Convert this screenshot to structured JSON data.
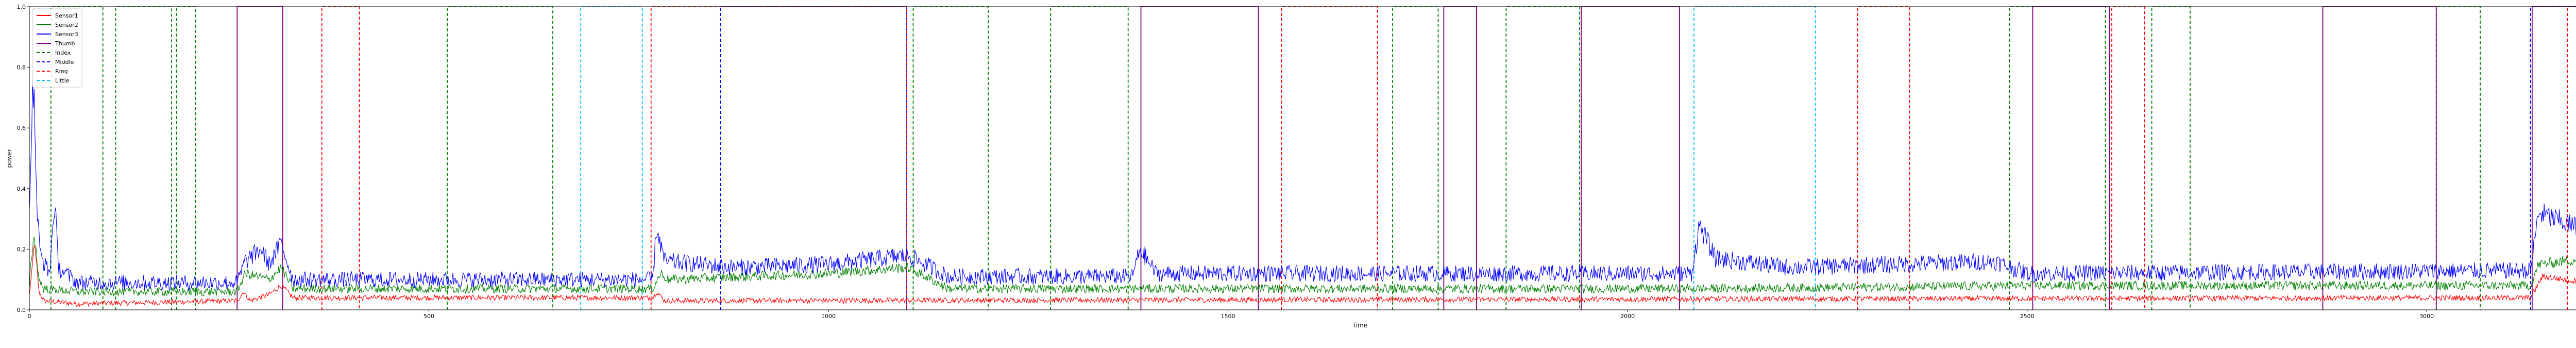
{
  "chart_data": {
    "type": "line",
    "xlabel": "Time",
    "ylabel": "power",
    "xlim": [
      0,
      3330
    ],
    "ylim": [
      0,
      1.0
    ],
    "x_ticks": [
      0,
      500,
      1000,
      1500,
      2000,
      2500,
      3000
    ],
    "y_ticks": [
      0.0,
      0.2,
      0.4,
      0.6,
      0.8,
      1.0
    ],
    "legend_location": "upper-left",
    "legend": [
      {
        "name": "Sensor1",
        "color": "#ff0000",
        "style": "solid"
      },
      {
        "name": "Sensor2",
        "color": "#008000",
        "style": "solid"
      },
      {
        "name": "Sensor3",
        "color": "#0000ff",
        "style": "solid"
      },
      {
        "name": "Thumb",
        "color": "#800080",
        "style": "solid"
      },
      {
        "name": "Index",
        "color": "#008000",
        "style": "dashed"
      },
      {
        "name": "Middle",
        "color": "#0000ff",
        "style": "dashed"
      },
      {
        "name": "Ring",
        "color": "#ff0000",
        "style": "dashed"
      },
      {
        "name": "Little",
        "color": "#00bfff",
        "style": "dashed"
      }
    ],
    "sensor_series": [
      {
        "name": "Sensor1",
        "color": "#ff0000",
        "baseline": 0.02,
        "noise": 0.008,
        "points": [
          [
            0,
            0.05
          ],
          [
            3,
            0.12
          ],
          [
            6,
            0.22
          ],
          [
            9,
            0.15
          ],
          [
            12,
            0.06
          ],
          [
            18,
            0.03
          ],
          [
            60,
            0.02
          ],
          [
            260,
            0.03
          ],
          [
            268,
            0.06
          ],
          [
            276,
            0.03
          ],
          [
            300,
            0.05
          ],
          [
            315,
            0.08
          ],
          [
            330,
            0.04
          ],
          [
            780,
            0.04
          ],
          [
            785,
            0.06
          ],
          [
            795,
            0.03
          ],
          [
            3130,
            0.04
          ],
          [
            3145,
            0.11
          ],
          [
            3200,
            0.09
          ],
          [
            3250,
            0.1
          ],
          [
            3300,
            0.1
          ],
          [
            3330,
            0.08
          ]
        ]
      },
      {
        "name": "Sensor2",
        "color": "#008000",
        "baseline": 0.06,
        "noise": 0.012,
        "points": [
          [
            0,
            0.08
          ],
          [
            3,
            0.18
          ],
          [
            6,
            0.25
          ],
          [
            9,
            0.18
          ],
          [
            12,
            0.1
          ],
          [
            18,
            0.07
          ],
          [
            60,
            0.06
          ],
          [
            260,
            0.06
          ],
          [
            270,
            0.12
          ],
          [
            300,
            0.1
          ],
          [
            315,
            0.14
          ],
          [
            330,
            0.07
          ],
          [
            780,
            0.07
          ],
          [
            790,
            0.12
          ],
          [
            800,
            0.1
          ],
          [
            1000,
            0.12
          ],
          [
            1100,
            0.14
          ],
          [
            1150,
            0.07
          ],
          [
            2100,
            0.07
          ],
          [
            2500,
            0.08
          ],
          [
            3130,
            0.08
          ],
          [
            3140,
            0.15
          ],
          [
            3200,
            0.17
          ],
          [
            3250,
            0.19
          ],
          [
            3300,
            0.2
          ],
          [
            3330,
            0.16
          ]
        ]
      },
      {
        "name": "Sensor3",
        "color": "#0000ff",
        "baseline": 0.1,
        "noise": 0.02,
        "points": [
          [
            0,
            0.3
          ],
          [
            2,
            0.55
          ],
          [
            4,
            0.72
          ],
          [
            6,
            0.68
          ],
          [
            8,
            0.5
          ],
          [
            10,
            0.3
          ],
          [
            14,
            0.18
          ],
          [
            25,
            0.12
          ],
          [
            32,
            0.36
          ],
          [
            36,
            0.14
          ],
          [
            60,
            0.09
          ],
          [
            260,
            0.09
          ],
          [
            270,
            0.16
          ],
          [
            290,
            0.2
          ],
          [
            300,
            0.15
          ],
          [
            315,
            0.22
          ],
          [
            330,
            0.1
          ],
          [
            780,
            0.1
          ],
          [
            785,
            0.27
          ],
          [
            795,
            0.16
          ],
          [
            880,
            0.14
          ],
          [
            1000,
            0.15
          ],
          [
            1100,
            0.18
          ],
          [
            1150,
            0.11
          ],
          [
            1380,
            0.11
          ],
          [
            1390,
            0.2
          ],
          [
            1410,
            0.12
          ],
          [
            2080,
            0.12
          ],
          [
            2090,
            0.28
          ],
          [
            2110,
            0.17
          ],
          [
            2200,
            0.14
          ],
          [
            2460,
            0.16
          ],
          [
            2500,
            0.12
          ],
          [
            3130,
            0.13
          ],
          [
            3140,
            0.32
          ],
          [
            3200,
            0.26
          ],
          [
            3250,
            0.26
          ],
          [
            3300,
            0.25
          ],
          [
            3330,
            0.18
          ]
        ]
      }
    ],
    "gesture_series": [
      {
        "name": "Index",
        "color": "#008000",
        "dash": "dashed",
        "intervals": [
          [
            27,
            92
          ],
          [
            108,
            178
          ],
          [
            184,
            208
          ],
          [
            523,
            655
          ],
          [
            1106,
            1200
          ],
          [
            1278,
            1375
          ],
          [
            1706,
            1763
          ],
          [
            1848,
            1940
          ],
          [
            2478,
            2598
          ],
          [
            2656,
            2704
          ],
          [
            3012,
            3067
          ]
        ]
      },
      {
        "name": "Ring",
        "color": "#ff0000",
        "dash": "dashed",
        "intervals": [
          [
            366,
            413
          ],
          [
            1567,
            1687
          ],
          [
            2288,
            2353
          ],
          [
            2606,
            2647
          ],
          [
            3176,
            3232
          ]
        ]
      },
      {
        "name": "Little",
        "color": "#00bfff",
        "dash": "dashed",
        "intervals": [
          [
            690,
            767
          ],
          [
            2083,
            2235
          ]
        ]
      },
      {
        "name": "Middle",
        "color": "#0000ff",
        "dash": "dashed",
        "intervals": [
          [
            865,
            1098
          ],
          [
            3130,
            3238
          ]
        ]
      },
      {
        "name": "Thumb",
        "color": "#800080",
        "dash": "solid",
        "intervals": [
          [
            260,
            317
          ],
          [
            1391,
            1538
          ],
          [
            1770,
            1811
          ],
          [
            1942,
            2065
          ],
          [
            2507,
            2603
          ],
          [
            2870,
            3012
          ],
          [
            3132,
            3258
          ],
          [
            3279,
            3317
          ]
        ]
      },
      {
        "name": "Ring",
        "color": "#ff0000",
        "dash": "dashed",
        "intervals": [
          [
            778,
            1098
          ]
        ]
      }
    ]
  }
}
